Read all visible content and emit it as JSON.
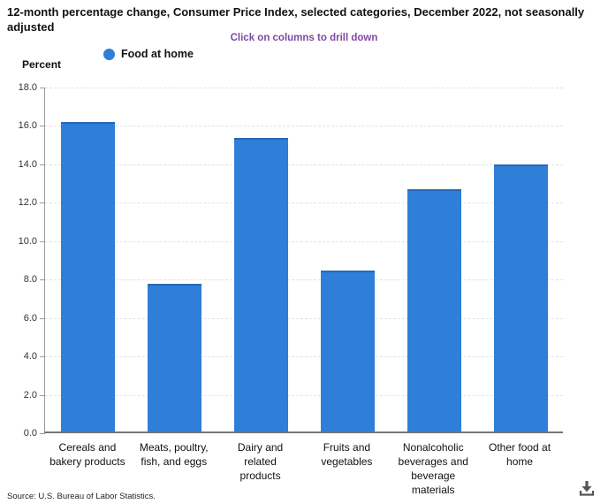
{
  "title": "12-month percentage change, Consumer Price Index, selected categories, December 2022, not seasonally adjusted",
  "drill_note": "Click on columns to drill down",
  "y_axis_title": "Percent",
  "legend": {
    "label": "Food at home"
  },
  "source": "Source: U.S. Bureau of Labor Statistics.",
  "colors": {
    "bar": "#2f7ed8",
    "note": "#7d4a9e",
    "grid": "#e2e2e2",
    "icon": "#555555"
  },
  "icons": {
    "legend_marker": "circle-icon",
    "download": "download-icon"
  },
  "chart_data": {
    "type": "bar",
    "title": "12-month percentage change, Consumer Price Index, selected categories, December 2022, not seasonally adjusted",
    "subtitle": "Click on columns to drill down",
    "categories": [
      "Cereals and bakery products",
      "Meats, poultry, fish, and eggs",
      "Dairy and related products",
      "Fruits and vegetables",
      "Nonalcoholic beverages and beverage materials",
      "Other food at home"
    ],
    "series": [
      {
        "name": "Food at home",
        "values": [
          16.1,
          7.7,
          15.3,
          8.4,
          12.6,
          13.9
        ]
      }
    ],
    "xlabel": "",
    "ylabel": "Percent",
    "ylim": [
      0,
      18
    ],
    "ytick_step": 2,
    "yticks": [
      "18.0",
      "16.0",
      "14.0",
      "12.0",
      "10.0",
      "8.0",
      "6.0",
      "4.0",
      "2.0",
      "0.0"
    ],
    "grid": true,
    "grid_style": "dashed",
    "legend_position": "top-left",
    "bar_color": "#2f7ed8"
  }
}
